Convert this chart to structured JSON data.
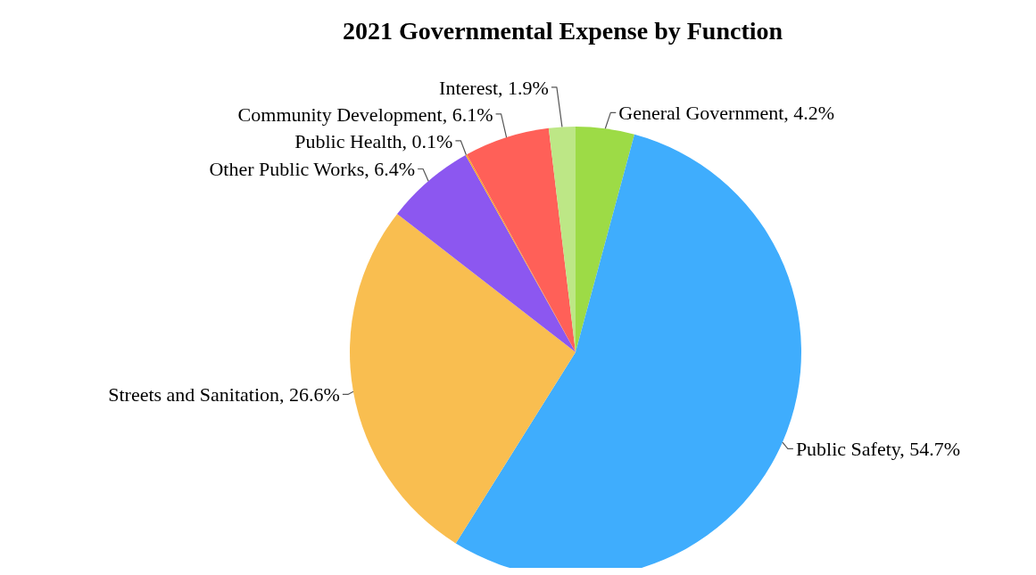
{
  "chart_data": {
    "type": "pie",
    "title": "2021 Governmental Expense by Function",
    "categories": [
      "General Government",
      "Public Safety",
      "Streets and Sanitation",
      "Other Public Works",
      "Public Health",
      "Community Development",
      "Interest"
    ],
    "values": [
      4.2,
      54.7,
      26.6,
      6.4,
      0.1,
      6.1,
      1.9
    ],
    "value_labels": [
      "4.2%",
      "54.7%",
      "26.6%",
      "6.4%",
      "0.1%",
      "6.1%",
      "1.9%"
    ],
    "colors": [
      "#9ddb46",
      "#3fadfd",
      "#f9be50",
      "#8c57f0",
      "#f5a623",
      "#ff6058",
      "#bde786"
    ]
  }
}
